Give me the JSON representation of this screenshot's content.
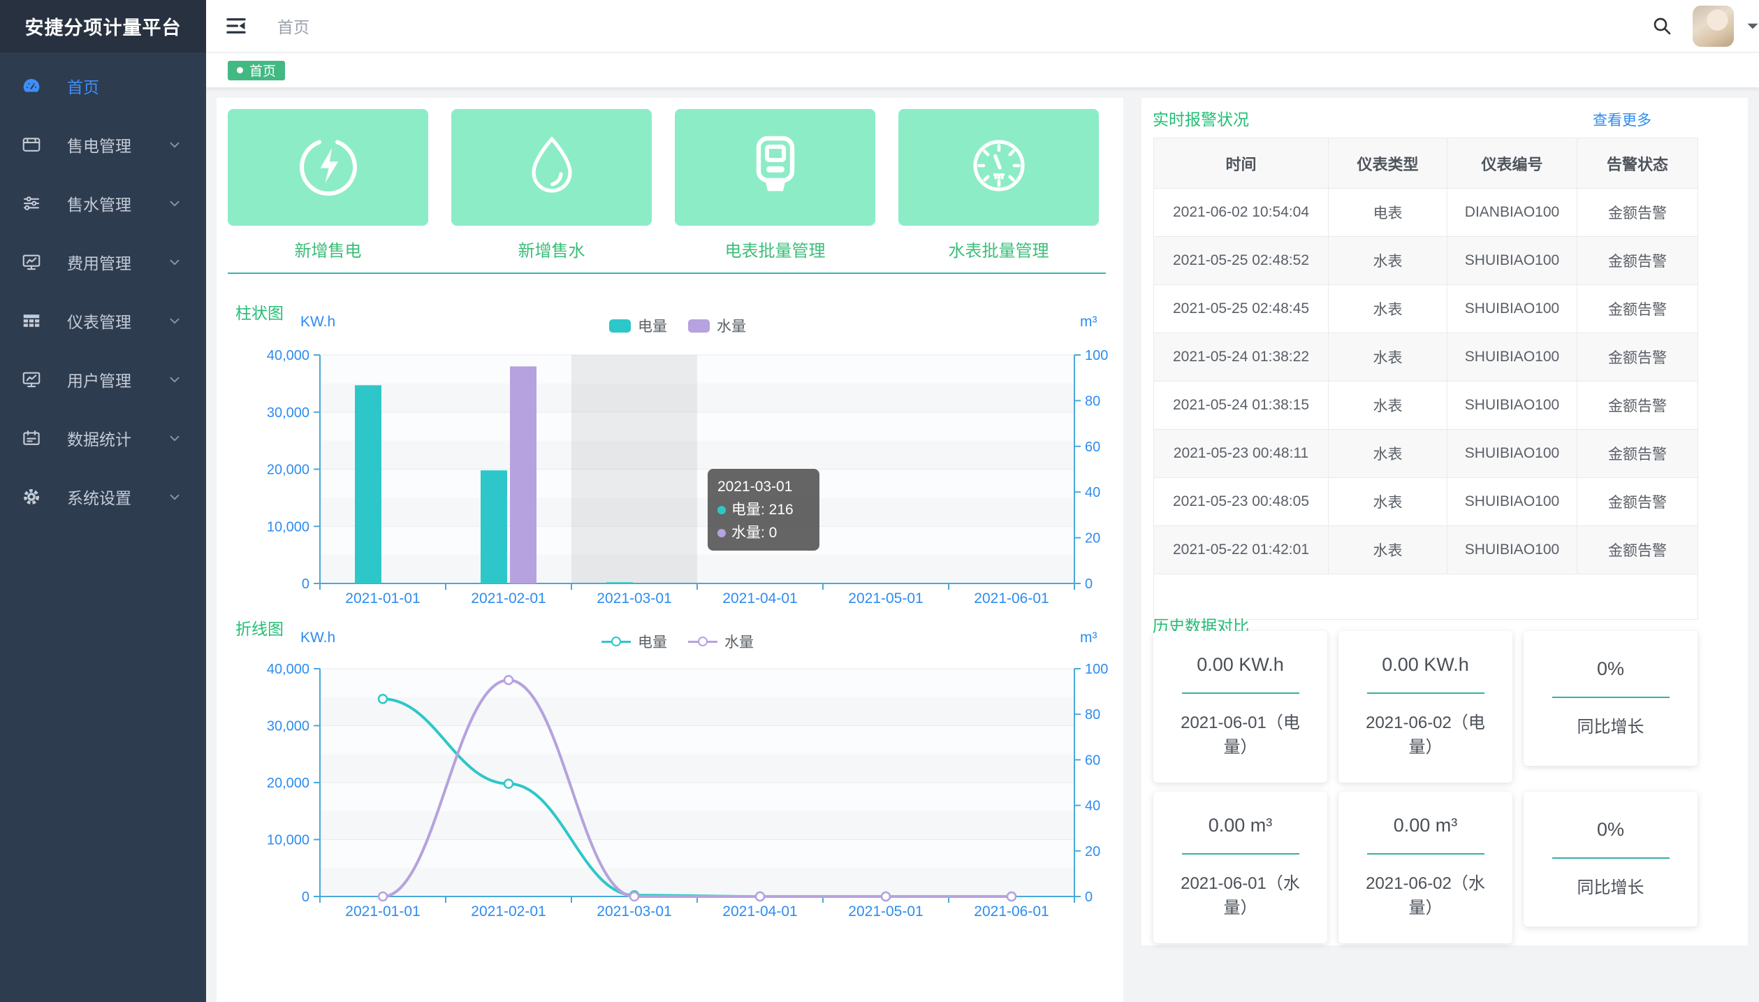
{
  "app": {
    "title": "安捷分项计量平台"
  },
  "header": {
    "breadcrumb": "首页"
  },
  "tagbar": {
    "active_tag": "首页"
  },
  "sidebar": {
    "items": [
      {
        "key": "home",
        "label": "首页",
        "icon": "dashboard",
        "active": true,
        "has_children": false
      },
      {
        "key": "electricity-sales",
        "label": "售电管理",
        "icon": "form",
        "active": false,
        "has_children": true
      },
      {
        "key": "water-sales",
        "label": "售水管理",
        "icon": "sliders",
        "active": false,
        "has_children": true
      },
      {
        "key": "fee-management",
        "label": "费用管理",
        "icon": "monitor",
        "active": false,
        "has_children": true
      },
      {
        "key": "meter-management",
        "label": "仪表管理",
        "icon": "grid",
        "active": false,
        "has_children": true
      },
      {
        "key": "user-management",
        "label": "用户管理",
        "icon": "monitor",
        "active": false,
        "has_children": true
      },
      {
        "key": "data-statistics",
        "label": "数据统计",
        "icon": "board",
        "active": false,
        "has_children": true
      },
      {
        "key": "system-settings",
        "label": "系统设置",
        "icon": "gear",
        "active": false,
        "has_children": true
      }
    ]
  },
  "quick_actions": [
    {
      "key": "add-electricity-sale",
      "label": "新增售电",
      "icon": "bolt-circle"
    },
    {
      "key": "add-water-sale",
      "label": "新增售水",
      "icon": "water-drop"
    },
    {
      "key": "electricity-meter-batch",
      "label": "电表批量管理",
      "icon": "meter-device"
    },
    {
      "key": "water-meter-batch",
      "label": "水表批量管理",
      "icon": "gauge"
    }
  ],
  "chart_data": [
    {
      "type": "bar",
      "title": "柱状图",
      "categories": [
        "2021-01-01",
        "2021-02-01",
        "2021-03-01",
        "2021-04-01",
        "2021-05-01",
        "2021-06-01"
      ],
      "series": [
        {
          "name": "电量",
          "color": "#2ec7c9",
          "axis": "left",
          "values": [
            34700,
            19800,
            216,
            0,
            0,
            0
          ]
        },
        {
          "name": "水量",
          "color": "#b6a2de",
          "axis": "right",
          "values": [
            0,
            95,
            0,
            0,
            0,
            0
          ]
        }
      ],
      "left_axis": {
        "unit": "KW.h",
        "max": 40000,
        "ticks": [
          "40,000",
          "30,000",
          "20,000",
          "10,000",
          "0"
        ]
      },
      "right_axis": {
        "unit": "m³",
        "max": 100,
        "ticks": [
          "100",
          "80",
          "60",
          "40",
          "20",
          "0"
        ]
      },
      "legend_position": "top-center",
      "grid": true,
      "hover_index": 2,
      "tooltip": {
        "title": "2021-03-01",
        "rows": [
          {
            "name": "电量",
            "value": "216",
            "color": "#2ec7c9"
          },
          {
            "name": "水量",
            "value": "0",
            "color": "#b6a2de"
          }
        ]
      }
    },
    {
      "type": "line",
      "title": "折线图",
      "categories": [
        "2021-01-01",
        "2021-02-01",
        "2021-03-01",
        "2021-04-01",
        "2021-05-01",
        "2021-06-01"
      ],
      "series": [
        {
          "name": "电量",
          "color": "#2ec7c9",
          "axis": "left",
          "values": [
            34700,
            19800,
            216,
            0,
            0,
            0
          ]
        },
        {
          "name": "水量",
          "color": "#b6a2de",
          "axis": "right",
          "values": [
            0,
            95,
            0,
            0,
            0,
            0
          ]
        }
      ],
      "left_axis": {
        "unit": "KW.h",
        "max": 40000,
        "ticks": [
          "40,000",
          "30,000",
          "20,000",
          "10,000",
          "0"
        ]
      },
      "right_axis": {
        "unit": "m³",
        "max": 100,
        "ticks": [
          "100",
          "80",
          "60",
          "40",
          "20",
          "0"
        ]
      },
      "legend_position": "top-center",
      "grid": true
    }
  ],
  "alarm_panel": {
    "title": "实时报警状况",
    "more_link": "查看更多",
    "columns": [
      "时间",
      "仪表类型",
      "仪表编号",
      "告警状态"
    ],
    "rows": [
      [
        "2021-06-02 10:54:04",
        "电表",
        "DIANBIAO100",
        "金额告警"
      ],
      [
        "2021-05-25 02:48:52",
        "水表",
        "SHUIBIAO100",
        "金额告警"
      ],
      [
        "2021-05-25 02:48:45",
        "水表",
        "SHUIBIAO100",
        "金额告警"
      ],
      [
        "2021-05-24 01:38:22",
        "水表",
        "SHUIBIAO100",
        "金额告警"
      ],
      [
        "2021-05-24 01:38:15",
        "水表",
        "SHUIBIAO100",
        "金额告警"
      ],
      [
        "2021-05-23 00:48:11",
        "水表",
        "SHUIBIAO100",
        "金额告警"
      ],
      [
        "2021-05-23 00:48:05",
        "水表",
        "SHUIBIAO100",
        "金额告警"
      ],
      [
        "2021-05-22 01:42:01",
        "水表",
        "SHUIBIAO100",
        "金额告警"
      ]
    ]
  },
  "history_panel": {
    "title": "历史数据对比",
    "cards": [
      {
        "value": "0.00 KW.h",
        "label": "2021-06-01（电量）"
      },
      {
        "value": "0.00 KW.h",
        "label": "2021-06-02（电量）"
      },
      {
        "value": "0%",
        "label": "同比增长"
      },
      {
        "value": "0.00 m³",
        "label": "2021-06-01（水量）"
      },
      {
        "value": "0.00 m³",
        "label": "2021-06-02（水量）"
      },
      {
        "value": "0%",
        "label": "同比增长"
      }
    ]
  },
  "colors": {
    "accent_green": "#42b983",
    "title_green": "#23bd75",
    "link_blue": "#2d8cf0",
    "axis_label_blue": "#2d8cf0",
    "series_teal": "#2ec7c9",
    "series_purple": "#b6a2de",
    "card_mint": "#8cecc6",
    "sidebar_bg": "#2e3c50",
    "sidebar_active": "#3e8ef7"
  }
}
